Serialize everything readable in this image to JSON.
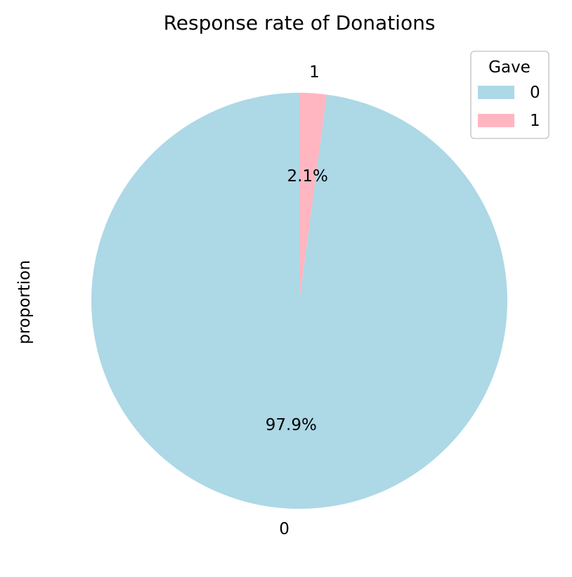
{
  "chart_data": {
    "type": "pie",
    "title": "Response rate of Donations",
    "ylabel": "proportion",
    "categories": [
      "0",
      "1"
    ],
    "values": [
      97.9,
      2.1
    ],
    "percent_labels": [
      "97.9%",
      "2.1%"
    ],
    "colors": [
      "#add8e6",
      "#ffb6c1"
    ],
    "start_angle_deg": 90,
    "direction": "counterclockwise",
    "legend": {
      "title": "Gave",
      "placement": "top-right",
      "entries": [
        "0",
        "1"
      ]
    }
  }
}
